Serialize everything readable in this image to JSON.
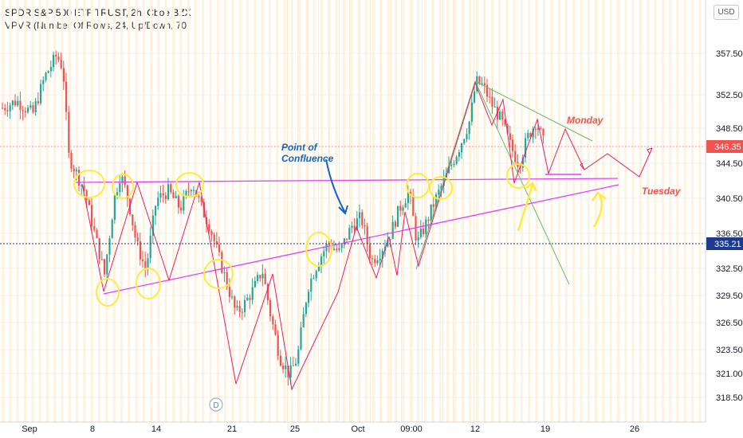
{
  "header": {
    "title": "SPDR S&P 500 ETF TRUST, 2h, Cboe BZX",
    "indicator": "VPVR (Number Of Rows, 24, Up/Down, 70)"
  },
  "currency_button": "USD",
  "chart_data": {
    "type": "candlestick",
    "y_ticks": [
      "357.50",
      "352.50",
      "348.50",
      "344.50",
      "340.50",
      "336.50",
      "332.50",
      "329.50",
      "326.50",
      "323.50",
      "321.00",
      "318.50"
    ],
    "x_ticks": [
      "Sep",
      "8",
      "14",
      "21",
      "25",
      "Oct",
      "09:00",
      "12",
      "19",
      "26"
    ],
    "price_labels": [
      {
        "value": "346.35",
        "color": "#ef5350"
      },
      {
        "value": "335.21",
        "color": "#1e3a8a"
      }
    ],
    "annotations": {
      "confluence": "Point of\nConfluence",
      "monday": "Monday",
      "tuesday": "Tuesday"
    },
    "events": [
      "D"
    ],
    "colors": {
      "up": "#26a69a",
      "down": "#ef5350",
      "drawing_pink": "#e91e63",
      "magenta": "#e040fb",
      "highlight": "#ffeb3b",
      "channel": "#4caf50",
      "note": "#1565c0",
      "note_red": "#ef5350"
    }
  }
}
